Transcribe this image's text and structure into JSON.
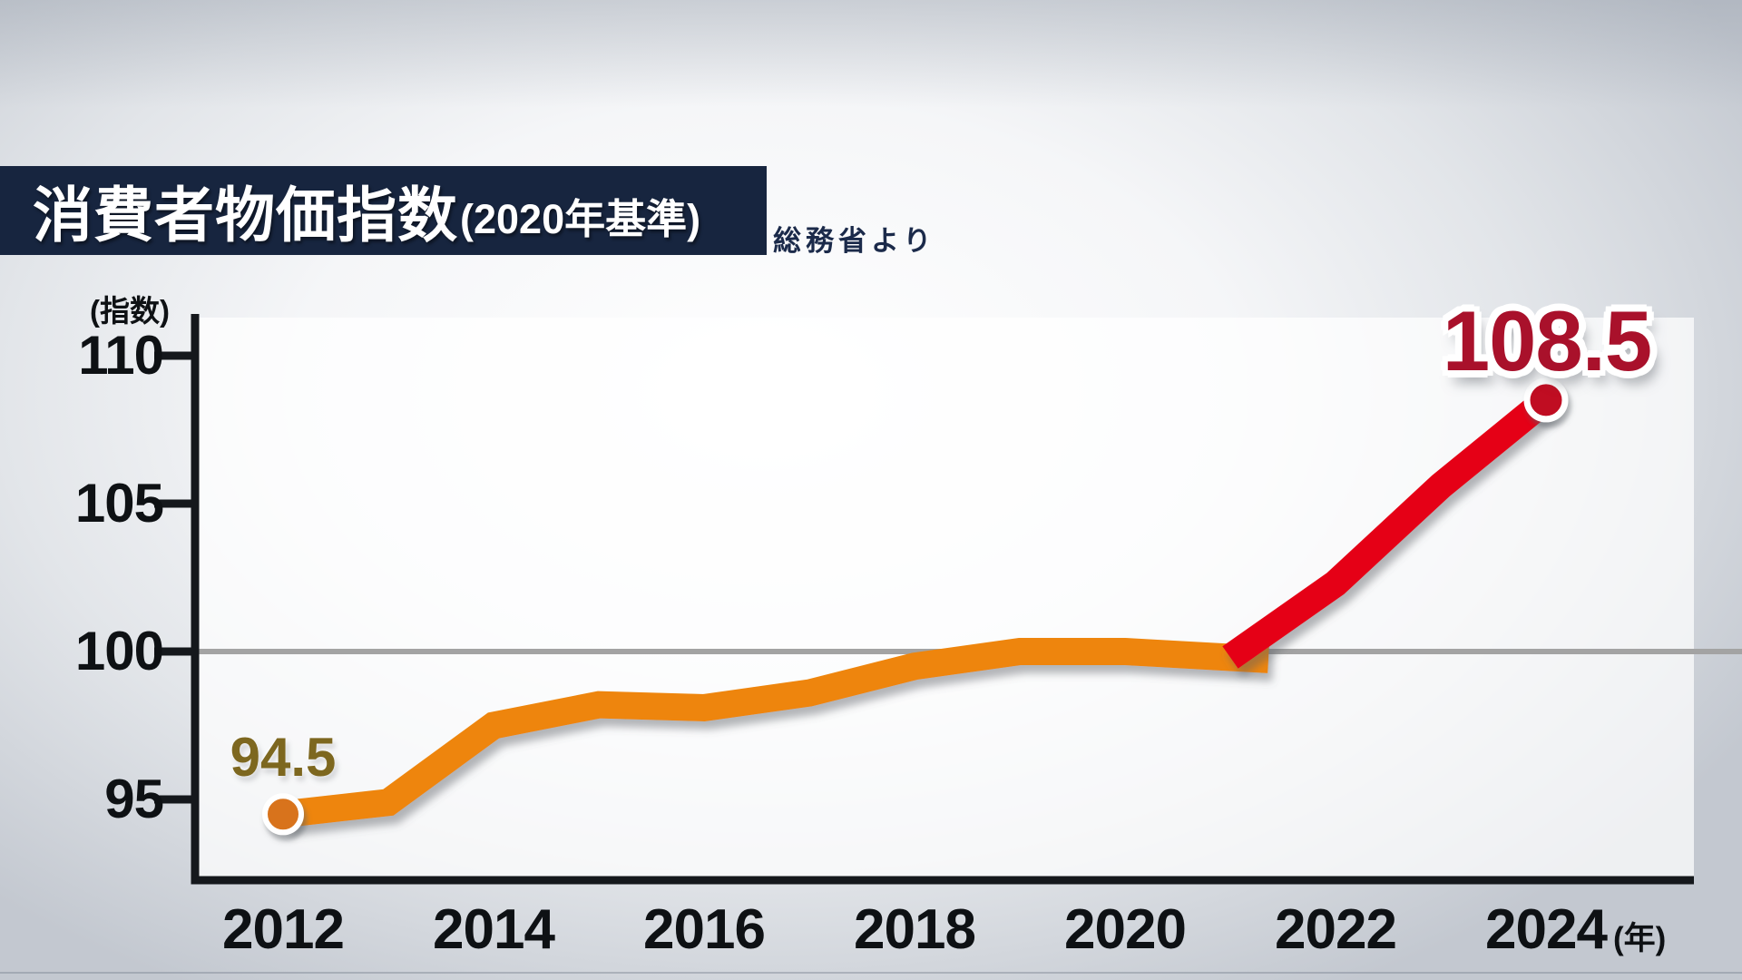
{
  "header": {
    "title": "消費者物価指数",
    "title_suffix": "(2020年基準)",
    "source": "総務省より",
    "bar_color": "#17253f"
  },
  "chart_data": {
    "type": "line",
    "title": "消費者物価指数(2020年基準)",
    "source": "総務省より",
    "ylabel": "(指数)",
    "xlabel": "(年)",
    "x": [
      2012,
      2013,
      2014,
      2015,
      2016,
      2017,
      2018,
      2019,
      2020,
      2021,
      2022,
      2023,
      2024
    ],
    "values": [
      94.5,
      94.9,
      97.5,
      98.2,
      98.1,
      98.6,
      99.5,
      100.0,
      100.0,
      99.8,
      102.3,
      105.6,
      108.5
    ],
    "series": [
      {
        "name": "cpi-2012-2021",
        "color": "#ee8508",
        "x": [
          2012,
          2013,
          2014,
          2015,
          2016,
          2017,
          2018,
          2019,
          2020,
          2021
        ],
        "values": [
          94.5,
          94.9,
          97.5,
          98.2,
          98.1,
          98.6,
          99.5,
          100.0,
          100.0,
          99.8
        ]
      },
      {
        "name": "cpi-2021-2024",
        "color": "#e50013",
        "x": [
          2021,
          2022,
          2023,
          2024
        ],
        "values": [
          99.8,
          102.3,
          105.6,
          108.5
        ]
      }
    ],
    "x_ticks": [
      2012,
      2014,
      2016,
      2018,
      2020,
      2022,
      2024
    ],
    "y_ticks": [
      110,
      105,
      100,
      95
    ],
    "ylim": [
      92.4,
      111.3
    ],
    "xlim": [
      2011.2,
      2025.4
    ],
    "baseline": 100,
    "grid": "off",
    "legend": "none",
    "annotations": [
      {
        "x": 2012,
        "value": 94.5,
        "label": "94.5",
        "color": "#7d671f",
        "dot_color": "#d8731c"
      },
      {
        "x": 2024,
        "value": 108.5,
        "label": "108.5",
        "color": "#a9112b",
        "dot_color": "#c00e21"
      }
    ],
    "baseline_color": "#a3a3a3",
    "axis_color": "#15181c"
  }
}
